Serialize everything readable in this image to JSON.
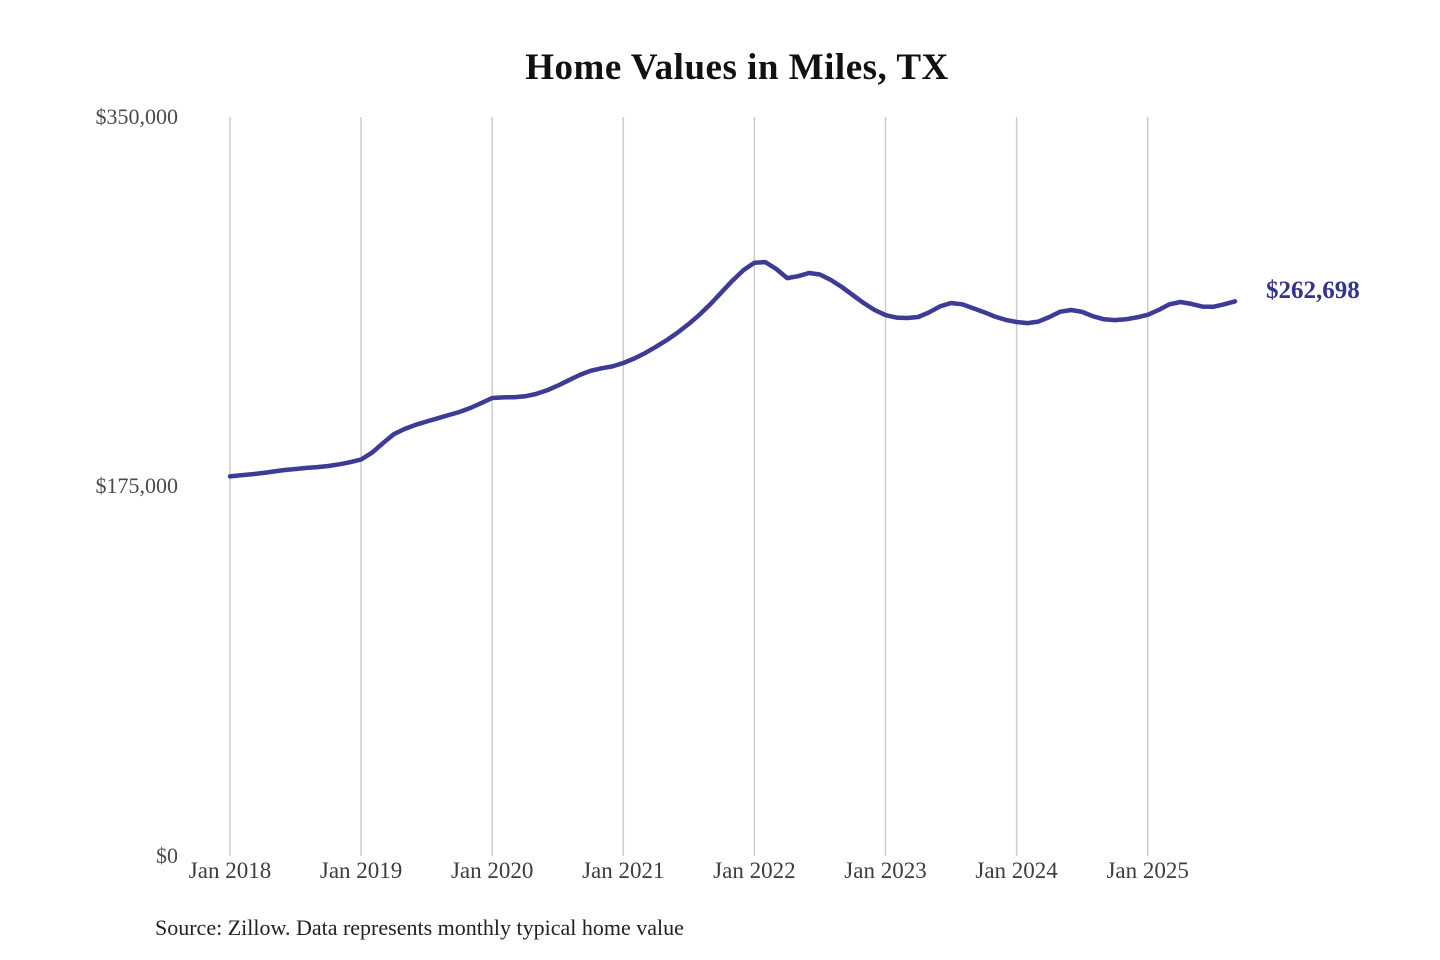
{
  "title": "Home Values in Miles, TX",
  "source_note": "Source: Zillow. Data represents monthly typical home value",
  "colors": {
    "line": "#3d3b96",
    "end_label": "#333389",
    "gridline": "#cccccc",
    "title_text": "#111111",
    "y_tick_text": "#4a4a4a",
    "x_tick_text": "#3d3d3d",
    "source_text": "#222222",
    "background": "#ffffff"
  },
  "chart_data": {
    "type": "line",
    "title": "Home Values in Miles, TX",
    "ylabel": "",
    "xlabel": "",
    "ylim": [
      0,
      350000
    ],
    "grid": "vertical-only",
    "legend_position": "none",
    "y_tick_labels": [
      "$350,000",
      "$175,000",
      "$0"
    ],
    "y_tick_values": [
      350000,
      175000,
      0
    ],
    "x_tick_labels": [
      "Jan 2018",
      "Jan 2019",
      "Jan 2020",
      "Jan 2021",
      "Jan 2022",
      "Jan 2023",
      "Jan 2024",
      "Jan 2025"
    ],
    "x_start_month": "2018-01",
    "x_end_month": "2025-09",
    "x_cadence": "monthly",
    "final_value": 262698,
    "final_value_label": "$262,698",
    "series": [
      {
        "name": "Typical home value",
        "values": [
          179800,
          180300,
          180800,
          181400,
          182100,
          182800,
          183300,
          183800,
          184200,
          184700,
          185500,
          186500,
          187800,
          191000,
          195500,
          199800,
          202300,
          204200,
          205800,
          207300,
          208800,
          210300,
          212200,
          214500,
          216900,
          217200,
          217300,
          217700,
          218800,
          220500,
          222800,
          225300,
          227800,
          229800,
          231000,
          231900,
          233500,
          235600,
          238200,
          241200,
          244400,
          248000,
          252000,
          256500,
          261500,
          267000,
          272500,
          277500,
          281000,
          281300,
          278000,
          273700,
          274600,
          276100,
          275400,
          272800,
          269500,
          265700,
          261900,
          258600,
          256200,
          255000,
          254800,
          255300,
          257500,
          260300,
          261900,
          261300,
          259500,
          257600,
          255500,
          253900,
          252900,
          252400,
          253100,
          255300,
          257800,
          258600,
          257700,
          255600,
          254200,
          253800,
          254200,
          255100,
          256300,
          258600,
          261300,
          262400,
          261500,
          260200,
          260100,
          261300,
          262698
        ]
      }
    ]
  }
}
